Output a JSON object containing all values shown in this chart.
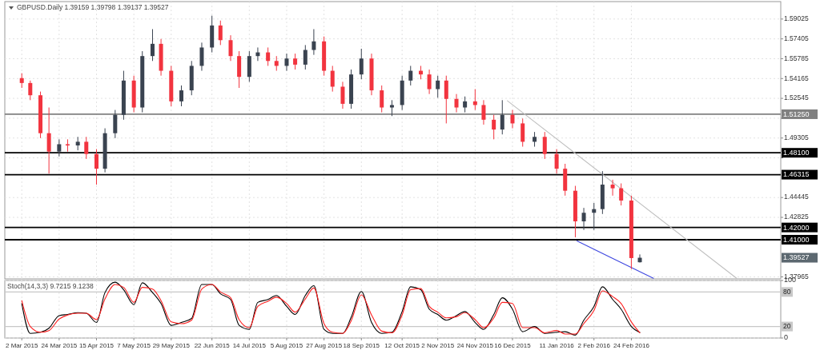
{
  "chart_data": [
    {
      "type": "candlestick",
      "title": "GBPUSD.Daily 1.39159 1.39798 1.39137 1.39527",
      "x": [
        "2015-03-02",
        "2015-03-07",
        "2015-03-13",
        "2015-03-18",
        "2015-03-24",
        "2015-03-29",
        "2015-04-04",
        "2015-04-09",
        "2015-04-15",
        "2015-04-20",
        "2015-04-26",
        "2015-05-01",
        "2015-05-07",
        "2015-05-12",
        "2015-05-18",
        "2015-05-23",
        "2015-05-29",
        "2015-06-04",
        "2015-06-10",
        "2015-06-16",
        "2015-06-22",
        "2015-06-27",
        "2015-07-03",
        "2015-07-08",
        "2015-07-14",
        "2015-07-19",
        "2015-07-25",
        "2015-07-30",
        "2015-08-05",
        "2015-08-10",
        "2015-08-16",
        "2015-08-21",
        "2015-08-27",
        "2015-09-01",
        "2015-09-07",
        "2015-09-12",
        "2015-09-18",
        "2015-09-24",
        "2015-09-30",
        "2015-10-06",
        "2015-10-12",
        "2015-10-17",
        "2015-10-23",
        "2015-10-28",
        "2015-11-02",
        "2015-11-07",
        "2015-11-13",
        "2015-11-18",
        "2015-11-24",
        "2015-11-29",
        "2015-12-05",
        "2015-12-10",
        "2015-12-16",
        "2015-12-22",
        "2015-12-29",
        "2016-01-04",
        "2016-01-11",
        "2016-01-16",
        "2016-01-22",
        "2016-01-27",
        "2016-02-02",
        "2016-02-07",
        "2016-02-13",
        "2016-02-18",
        "2016-02-24",
        "2016-02-29"
      ],
      "ohlc": [
        [
          1.542,
          1.546,
          1.534,
          1.538
        ],
        [
          1.538,
          1.54,
          1.524,
          1.528
        ],
        [
          1.528,
          1.531,
          1.493,
          1.497
        ],
        [
          1.497,
          1.518,
          1.464,
          1.482
        ],
        [
          1.482,
          1.492,
          1.478,
          1.488
        ],
        [
          1.488,
          1.492,
          1.482,
          1.487
        ],
        [
          1.487,
          1.494,
          1.483,
          1.49
        ],
        [
          1.49,
          1.494,
          1.476,
          1.48
        ],
        [
          1.48,
          1.484,
          1.455,
          1.468
        ],
        [
          1.468,
          1.501,
          1.465,
          1.497
        ],
        [
          1.497,
          1.516,
          1.493,
          1.512
        ],
        [
          1.512,
          1.548,
          1.508,
          1.54
        ],
        [
          1.54,
          1.544,
          1.514,
          1.518
        ],
        [
          1.518,
          1.564,
          1.514,
          1.56
        ],
        [
          1.56,
          1.582,
          1.556,
          1.57
        ],
        [
          1.57,
          1.574,
          1.544,
          1.548
        ],
        [
          1.548,
          1.552,
          1.519,
          1.523
        ],
        [
          1.523,
          1.536,
          1.519,
          1.532
        ],
        [
          1.532,
          1.556,
          1.528,
          1.552
        ],
        [
          1.552,
          1.571,
          1.548,
          1.567
        ],
        [
          1.567,
          1.593,
          1.563,
          1.585
        ],
        [
          1.585,
          1.589,
          1.569,
          1.573
        ],
        [
          1.573,
          1.577,
          1.556,
          1.56
        ],
        [
          1.56,
          1.564,
          1.534,
          1.543
        ],
        [
          1.543,
          1.564,
          1.539,
          1.56
        ],
        [
          1.56,
          1.567,
          1.556,
          1.563
        ],
        [
          1.563,
          1.567,
          1.552,
          1.556
        ],
        [
          1.556,
          1.56,
          1.548,
          1.552
        ],
        [
          1.552,
          1.562,
          1.548,
          1.558
        ],
        [
          1.558,
          1.562,
          1.549,
          1.553
        ],
        [
          1.553,
          1.569,
          1.549,
          1.565
        ],
        [
          1.565,
          1.582,
          1.561,
          1.572
        ],
        [
          1.572,
          1.576,
          1.544,
          1.548
        ],
        [
          1.548,
          1.552,
          1.531,
          1.535
        ],
        [
          1.535,
          1.539,
          1.517,
          1.521
        ],
        [
          1.521,
          1.549,
          1.517,
          1.545
        ],
        [
          1.545,
          1.566,
          1.541,
          1.558
        ],
        [
          1.558,
          1.562,
          1.528,
          1.532
        ],
        [
          1.532,
          1.536,
          1.514,
          1.518
        ],
        [
          1.518,
          1.524,
          1.511,
          1.52
        ],
        [
          1.52,
          1.544,
          1.516,
          1.54
        ],
        [
          1.54,
          1.552,
          1.536,
          1.548
        ],
        [
          1.548,
          1.552,
          1.541,
          1.545
        ],
        [
          1.545,
          1.549,
          1.529,
          1.533
        ],
        [
          1.533,
          1.544,
          1.526,
          1.54
        ],
        [
          1.54,
          1.544,
          1.505,
          1.525
        ],
        [
          1.525,
          1.529,
          1.514,
          1.518
        ],
        [
          1.518,
          1.527,
          1.514,
          1.523
        ],
        [
          1.523,
          1.533,
          1.516,
          1.52
        ],
        [
          1.52,
          1.524,
          1.504,
          1.508
        ],
        [
          1.508,
          1.512,
          1.492,
          1.5
        ],
        [
          1.5,
          1.524,
          1.496,
          1.512
        ],
        [
          1.512,
          1.516,
          1.501,
          1.505
        ],
        [
          1.505,
          1.509,
          1.486,
          1.49
        ],
        [
          1.49,
          1.498,
          1.486,
          1.494
        ],
        [
          1.494,
          1.498,
          1.476,
          1.48
        ],
        [
          1.48,
          1.484,
          1.464,
          1.468
        ],
        [
          1.468,
          1.472,
          1.446,
          1.45
        ],
        [
          1.45,
          1.454,
          1.412,
          1.425
        ],
        [
          1.425,
          1.436,
          1.418,
          1.432
        ],
        [
          1.432,
          1.44,
          1.418,
          1.435
        ],
        [
          1.435,
          1.466,
          1.431,
          1.455
        ],
        [
          1.455,
          1.459,
          1.446,
          1.452
        ],
        [
          1.452,
          1.456,
          1.438,
          1.442
        ],
        [
          1.442,
          1.446,
          1.386,
          1.395
        ],
        [
          1.39159,
          1.39798,
          1.39137,
          1.39527
        ]
      ],
      "colors": [
        "#f2343f",
        "#f2343f",
        "#f2343f",
        "#f2343f",
        "#3a4350",
        "#f2343f",
        "#3a4350",
        "#f2343f",
        "#f2343f",
        "#3a4350",
        "#3a4350",
        "#3a4350",
        "#f2343f",
        "#3a4350",
        "#3a4350",
        "#f2343f",
        "#f2343f",
        "#3a4350",
        "#3a4350",
        "#3a4350",
        "#3a4350",
        "#f2343f",
        "#f2343f",
        "#f2343f",
        "#3a4350",
        "#3a4350",
        "#f2343f",
        "#f2343f",
        "#3a4350",
        "#f2343f",
        "#3a4350",
        "#3a4350",
        "#f2343f",
        "#f2343f",
        "#f2343f",
        "#3a4350",
        "#3a4350",
        "#f2343f",
        "#f2343f",
        "#3a4350",
        "#3a4350",
        "#3a4350",
        "#f2343f",
        "#f2343f",
        "#3a4350",
        "#f2343f",
        "#f2343f",
        "#3a4350",
        "#f2343f",
        "#f2343f",
        "#f2343f",
        "#3a4350",
        "#f2343f",
        "#f2343f",
        "#3a4350",
        "#f2343f",
        "#f2343f",
        "#f2343f",
        "#f2343f",
        "#3a4350",
        "#3a4350",
        "#3a4350",
        "#f2343f",
        "#f2343f",
        "#f2343f",
        "#3a4350"
      ],
      "series": [
        {
          "type": "line",
          "x": [
            "2015-12-13",
            "2016-04-26"
          ],
          "values": [
            1.5235,
            1.3785
          ],
          "color": "#c0c0c0"
        },
        {
          "type": "line",
          "x": [
            "2016-01-23",
            "2016-03-08"
          ],
          "values": [
            1.409,
            1.3785
          ],
          "color": "#3f48e0"
        }
      ],
      "xlim": [
        "2015-02-20",
        "2016-05-22"
      ],
      "xticks": [
        {
          "value": "2015-03-02",
          "label": null
        },
        {
          "value": "2015-03-24",
          "label": null
        },
        {
          "value": "2015-04-15",
          "label": null
        },
        {
          "value": "2015-05-07",
          "label": null
        },
        {
          "value": "2015-05-29",
          "label": null
        },
        {
          "value": "2015-06-22",
          "label": null
        },
        {
          "value": "2015-07-14",
          "label": null
        },
        {
          "value": "2015-08-05",
          "label": null
        },
        {
          "value": "2015-08-27",
          "label": null
        },
        {
          "value": "2015-09-18",
          "label": null
        },
        {
          "value": "2015-10-12",
          "label": null
        },
        {
          "value": "2015-11-02",
          "label": null
        },
        {
          "value": "2015-11-24",
          "label": null
        },
        {
          "value": "2015-12-16",
          "label": null
        },
        {
          "value": "2016-01-11",
          "label": null
        },
        {
          "value": "2016-02-02",
          "label": null
        },
        {
          "value": "2016-02-24",
          "label": null
        }
      ],
      "ylim": [
        1.378,
        1.6045
      ],
      "yticks": [
        1.59025,
        1.57405,
        1.55785,
        1.54165,
        1.52545,
        {
          "value": 1.50925,
          "label": null
        },
        1.49305,
        {
          "value": 1.47685,
          "label": null
        },
        1.44445,
        1.42825,
        1.37965
      ],
      "grid": true,
      "tick_labels": "y",
      "ref_lines": [
        {
          "axis": "y",
          "value": 1.5125,
          "label": "1.51250",
          "color": "#808080"
        },
        {
          "axis": "y",
          "value": 1.481,
          "label": "1.48100",
          "color": "#000000"
        },
        {
          "axis": "y",
          "value": 1.46315,
          "label": "1.46315",
          "color": "#000000"
        },
        {
          "axis": "y",
          "value": 1.42,
          "label": "1.42000",
          "color": "#000000"
        },
        {
          "axis": "y",
          "value": 1.41,
          "label": "1.41000",
          "color": "#000000"
        }
      ],
      "annotations": [
        "1.39527"
      ]
    },
    {
      "type": "line",
      "title": "Stoch(14,3,3) 9.7215 9.1238",
      "x": [
        "2015-03-02",
        "2015-03-07",
        "2015-03-13",
        "2015-03-18",
        "2015-03-24",
        "2015-03-29",
        "2015-04-04",
        "2015-04-09",
        "2015-04-15",
        "2015-04-20",
        "2015-04-26",
        "2015-05-01",
        "2015-05-07",
        "2015-05-12",
        "2015-05-18",
        "2015-05-23",
        "2015-05-29",
        "2015-06-04",
        "2015-06-10",
        "2015-06-16",
        "2015-06-22",
        "2015-06-27",
        "2015-07-03",
        "2015-07-08",
        "2015-07-14",
        "2015-07-19",
        "2015-07-25",
        "2015-07-30",
        "2015-08-05",
        "2015-08-10",
        "2015-08-16",
        "2015-08-21",
        "2015-08-27",
        "2015-09-01",
        "2015-09-07",
        "2015-09-12",
        "2015-09-18",
        "2015-09-24",
        "2015-09-30",
        "2015-10-06",
        "2015-10-12",
        "2015-10-17",
        "2015-10-23",
        "2015-10-28",
        "2015-11-02",
        "2015-11-07",
        "2015-11-13",
        "2015-11-18",
        "2015-11-24",
        "2015-11-29",
        "2015-12-05",
        "2015-12-10",
        "2015-12-16",
        "2015-12-22",
        "2015-12-29",
        "2016-01-04",
        "2016-01-11",
        "2016-01-16",
        "2016-01-22",
        "2016-01-27",
        "2016-02-02",
        "2016-02-07",
        "2016-02-13",
        "2016-02-18",
        "2016-02-24",
        "2016-02-29"
      ],
      "series": [
        {
          "color": "#000000",
          "values": [
            60,
            8,
            10,
            17,
            39,
            41,
            44,
            43,
            27,
            79,
            97,
            84,
            58,
            96,
            79,
            60,
            22,
            27,
            34,
            93,
            93,
            77,
            67,
            22,
            15,
            62,
            67,
            74,
            55,
            41,
            74,
            91,
            15,
            8,
            8,
            36,
            81,
            27,
            8,
            10,
            46,
            89,
            84,
            50,
            41,
            31,
            39,
            46,
            27,
            15,
            41,
            70,
            50,
            11,
            20,
            8,
            10,
            11,
            5,
            31,
            55,
            89,
            67,
            50,
            20,
            9.7
          ]
        },
        {
          "color": "#ff2020",
          "values": [
            65,
            20,
            10,
            13,
            33,
            40,
            43,
            43,
            32,
            68,
            93,
            88,
            62,
            88,
            85,
            65,
            28,
            25,
            31,
            85,
            93,
            80,
            70,
            32,
            18,
            55,
            64,
            71,
            60,
            45,
            68,
            87,
            25,
            10,
            8,
            30,
            75,
            40,
            12,
            9,
            40,
            84,
            86,
            55,
            45,
            35,
            37,
            44,
            32,
            18,
            35,
            62,
            60,
            18,
            18,
            9,
            13,
            7,
            7,
            25,
            48,
            82,
            72,
            60,
            28,
            9.1
          ]
        }
      ],
      "xlim": [
        "2015-02-20",
        "2016-05-22"
      ],
      "xticks": [
        {
          "value": "2015-03-02",
          "label": "2 Mar 2015"
        },
        {
          "value": "2015-03-24",
          "label": "24 Mar 2015"
        },
        {
          "value": "2015-04-15",
          "label": "15 Apr 2015"
        },
        {
          "value": "2015-05-07",
          "label": "7 May 2015"
        },
        {
          "value": "2015-05-29",
          "label": "29 May 2015"
        },
        {
          "value": "2015-06-22",
          "label": "22 Jun 2015"
        },
        {
          "value": "2015-07-14",
          "label": "14 Jul 2015"
        },
        {
          "value": "2015-08-05",
          "label": "5 Aug 2015"
        },
        {
          "value": "2015-08-27",
          "label": "27 Aug 2015"
        },
        {
          "value": "2015-09-18",
          "label": "18 Sep 2015"
        },
        {
          "value": "2015-10-12",
          "label": "12 Oct 2015"
        },
        {
          "value": "2015-11-02",
          "label": "2 Nov 2015"
        },
        {
          "value": "2015-11-24",
          "label": "24 Nov 2015"
        },
        {
          "value": "2015-12-16",
          "label": "16 Dec 2015"
        },
        {
          "value": "2016-01-11",
          "label": "11 Jan 2016"
        },
        {
          "value": "2016-02-02",
          "label": "2 Feb 2016"
        },
        {
          "value": "2016-02-24",
          "label": "24 Feb 2016"
        }
      ],
      "ylim": [
        0,
        100
      ],
      "yticks": [
        0,
        100
      ],
      "grid": true,
      "ref_lines": [
        {
          "axis": "y",
          "value": 80,
          "label": "80",
          "color": "#c8c8c8"
        },
        {
          "axis": "y",
          "value": 20,
          "label": "20",
          "color": "#c8c8c8"
        }
      ]
    }
  ]
}
